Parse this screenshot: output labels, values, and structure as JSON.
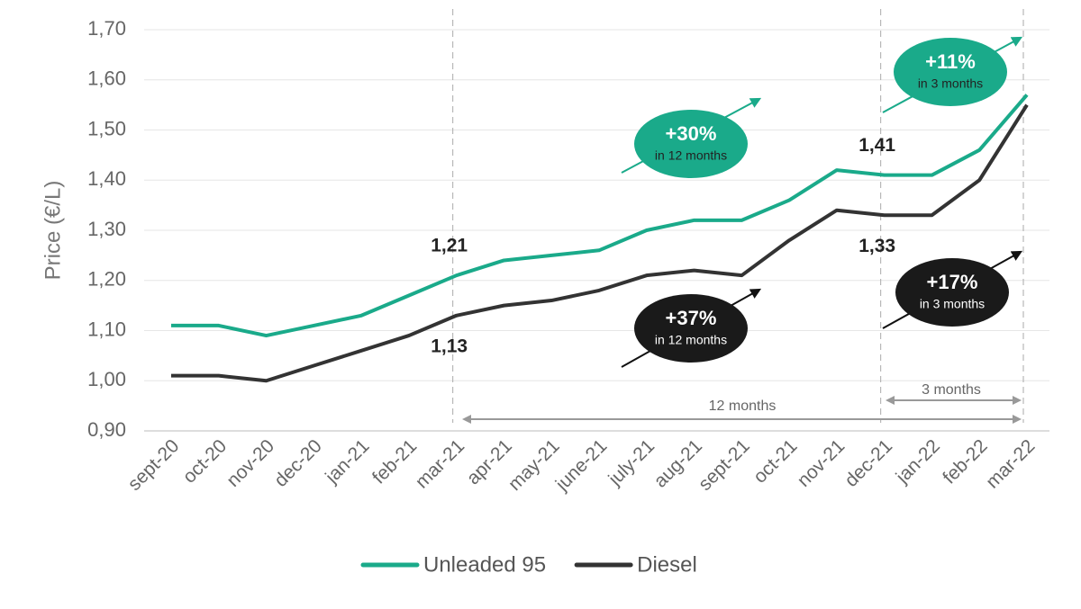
{
  "chart_data": {
    "type": "line",
    "y_label": "Price (€/L)",
    "categories": [
      "sept-20",
      "oct-20",
      "nov-20",
      "dec-20",
      "jan-21",
      "feb-21",
      "mar-21",
      "apr-21",
      "may-21",
      "june-21",
      "july-21",
      "aug-21",
      "sept-21",
      "oct-21",
      "nov-21",
      "dec-21",
      "jan-22",
      "feb-22",
      "mar-22"
    ],
    "series": [
      {
        "name": "Unleaded 95",
        "color": "#1aaa8a",
        "values": [
          1.11,
          1.11,
          1.09,
          1.11,
          1.13,
          1.17,
          1.21,
          1.24,
          1.25,
          1.26,
          1.3,
          1.32,
          1.32,
          1.36,
          1.42,
          1.41,
          1.41,
          1.46,
          1.57
        ],
        "value_labels": [
          null,
          null,
          null,
          null,
          null,
          null,
          "1,21",
          null,
          null,
          null,
          null,
          null,
          null,
          null,
          null,
          "1,41",
          null,
          null,
          null
        ]
      },
      {
        "name": "Diesel",
        "color": "#333333",
        "values": [
          1.01,
          1.01,
          1.0,
          1.03,
          1.06,
          1.09,
          1.13,
          1.15,
          1.16,
          1.18,
          1.21,
          1.22,
          1.21,
          1.28,
          1.34,
          1.33,
          1.33,
          1.4,
          1.55
        ],
        "value_labels": [
          null,
          null,
          null,
          null,
          null,
          null,
          "1,13",
          null,
          null,
          null,
          null,
          null,
          null,
          null,
          null,
          "1,33",
          null,
          null,
          null
        ]
      }
    ],
    "ylim": [
      0.9,
      1.7
    ],
    "yticks": [
      {
        "value": 0.9,
        "label": "0,90"
      },
      {
        "value": 1.0,
        "label": "1,00"
      },
      {
        "value": 1.1,
        "label": "1,10"
      },
      {
        "value": 1.2,
        "label": "1,20"
      },
      {
        "value": 1.3,
        "label": "1,30"
      },
      {
        "value": 1.4,
        "label": "1,40"
      },
      {
        "value": 1.5,
        "label": "1,50"
      },
      {
        "value": 1.6,
        "label": "1,60"
      },
      {
        "value": 1.7,
        "label": "1,70"
      }
    ],
    "grid": true,
    "legend": "bottom",
    "annotations": [
      {
        "text": "+30%",
        "subtext": "in 12 months"
      },
      {
        "text": "+37%",
        "subtext": "in 12 months"
      },
      {
        "text": "+11%",
        "subtext": "in 3 months"
      },
      {
        "text": "+17%",
        "subtext": "in 3 months"
      }
    ],
    "spans": [
      "12 months",
      "3 months"
    ]
  }
}
